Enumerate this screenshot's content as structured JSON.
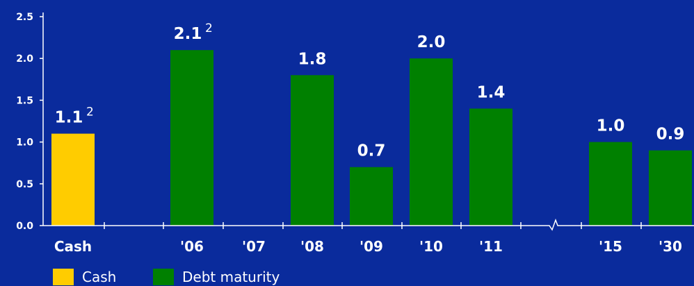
{
  "chart_data": {
    "type": "bar",
    "categories": [
      "Cash",
      "'06",
      "'07",
      "'08",
      "'09",
      "'10",
      "'11",
      "'15",
      "'30"
    ],
    "series": [
      {
        "name": "Cash",
        "color": "#ffcc00",
        "values": [
          1.1,
          null,
          null,
          null,
          null,
          null,
          null,
          null,
          null
        ]
      },
      {
        "name": "Debt maturity",
        "color": "#008000",
        "values": [
          null,
          2.1,
          null,
          1.8,
          0.7,
          2.0,
          1.4,
          1.0,
          0.9
        ]
      }
    ],
    "data_labels": [
      "1.1",
      "2.1",
      "",
      "1.8",
      "0.7",
      "2.0",
      "1.4",
      "1.0",
      "0.9"
    ],
    "label_footnotes": [
      "2",
      "2",
      "",
      "",
      "",
      "",
      "",
      "",
      ""
    ],
    "y_ticks": [
      "0.0",
      "0.5",
      "1.0",
      "1.5",
      "2.0",
      "2.5"
    ],
    "ylim": [
      0,
      2.5
    ],
    "axis_break": "between '11 and '15",
    "legend_position": "bottom-left",
    "title": "",
    "xlabel": "",
    "ylabel": ""
  },
  "legend": [
    {
      "label": "Cash",
      "color": "#ffcc00"
    },
    {
      "label": "Debt maturity",
      "color": "#008000"
    }
  ]
}
